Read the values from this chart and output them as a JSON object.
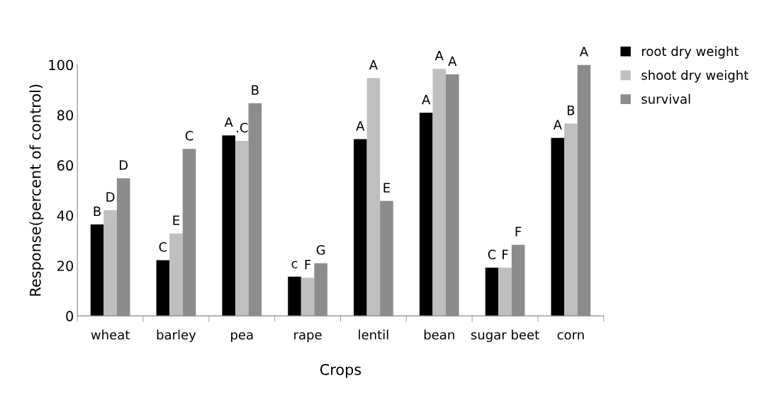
{
  "chart_data": {
    "type": "bar",
    "xlabel": "Crops",
    "ylabel": "Response(percent of control)",
    "categories": [
      "wheat",
      "barley",
      "pea",
      "rape",
      "lentil",
      "bean",
      "sugar beet",
      "corn"
    ],
    "series": [
      {
        "name": "root dry weight",
        "color": "#000000",
        "values": [
          36.4,
          22.2,
          71.9,
          15.6,
          70.4,
          80.9,
          19.2,
          70.9
        ],
        "value_labels": [
          "B",
          "C",
          "A",
          "c",
          "A",
          "A",
          "C",
          "A"
        ]
      },
      {
        "name": "shoot dry weight",
        "color": "#bfbfbf",
        "values": [
          42.1,
          32.8,
          69.7,
          15.2,
          94.7,
          98.4,
          19.2,
          76.6
        ],
        "value_labels": [
          "D",
          "E",
          ".C",
          "F",
          "A",
          "A",
          "F",
          "B"
        ]
      },
      {
        "name": "survival",
        "color": "#8c8c8c",
        "values": [
          54.8,
          66.5,
          84.7,
          21.0,
          45.8,
          96.2,
          28.3,
          100
        ],
        "value_labels": [
          "D",
          "C",
          "B",
          "G",
          "E",
          "A",
          "F",
          "A"
        ]
      }
    ],
    "ylim": [
      0,
      100
    ],
    "yticks": [
      0,
      20,
      40,
      60,
      80,
      100
    ],
    "grid": false,
    "legend": "top right"
  }
}
